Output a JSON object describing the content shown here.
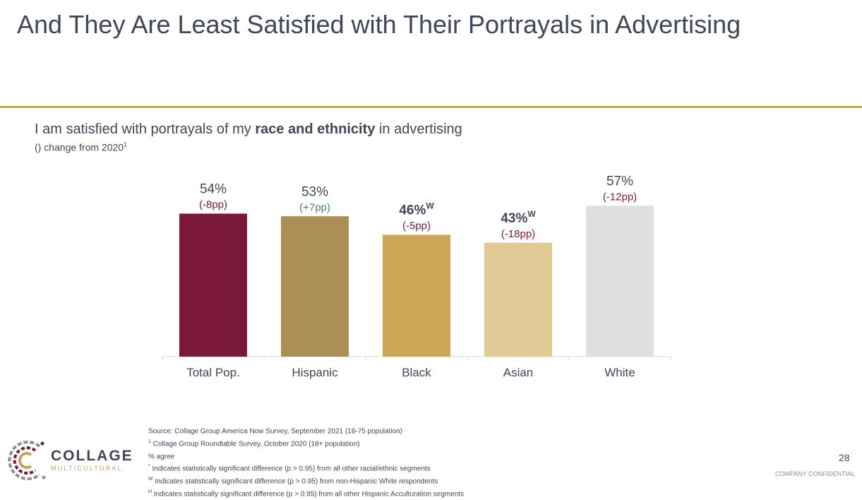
{
  "title": "And They Are Least Satisfied with Their Portrayals in Advertising",
  "subtitle": {
    "prefix": "I am satisfied with portrayals of my ",
    "bold": "race and ethnicity",
    "suffix": " in advertising"
  },
  "note": {
    "text": "() change from 2020",
    "marker": "1"
  },
  "chart_data": {
    "type": "bar",
    "title": "I am satisfied with portrayals of my race and ethnicity in advertising",
    "categories": [
      "Total Pop.",
      "Hispanic",
      "Black",
      "Asian",
      "White"
    ],
    "values": [
      54,
      53,
      46,
      43,
      57
    ],
    "value_labels": [
      "54%",
      "53%",
      "46%",
      "43%",
      "57%"
    ],
    "superscripts": [
      "",
      "",
      "W",
      "W",
      ""
    ],
    "bold_labels": [
      false,
      false,
      true,
      true,
      false
    ],
    "changes": [
      "(-8pp)",
      "(+7pp)",
      "(-5pp)",
      "(-18pp)",
      "(-12pp)"
    ],
    "bar_colors": [
      "#7a1838",
      "#ac8f55",
      "#cca654",
      "#e1c995",
      "#e0e0e0"
    ],
    "change_colors": [
      "#7a1838",
      "#3e8a6e",
      "#7a1838",
      "#7a1838",
      "#7a1838"
    ],
    "ylim": [
      0,
      60
    ],
    "xlabel": "",
    "ylabel": "% agree",
    "grid": false
  },
  "footnotes": [
    {
      "sup": "",
      "text": "Source: Collage Group America Now Survey, September 2021 (18-75 population)"
    },
    {
      "sup": "1",
      "text": " Collage Group Roundtable Survey, October 2020 (18+ population)"
    },
    {
      "sup": "",
      "text": "% agree"
    },
    {
      "sup": "*",
      "text": " Indicates statistically significant difference (p > 0.95) from all other racial/ethnic segments"
    },
    {
      "sup": "W",
      "text": " Indicates statistically significant difference (p > 0.95) from non-Hispanic White respondents"
    },
    {
      "sup": "H",
      "text": " Indicates statistically significant difference (p > 0.95) from all other Hispanic Acculturation segments"
    }
  ],
  "logo": {
    "word": "COLLAGE",
    "sub": "MULTICULTURAL"
  },
  "page_number": "28",
  "confidential": "COMPANY CONFIDENTIAL",
  "colors": {
    "accent": "#c6a55d",
    "text": "#3f4657",
    "axis": "#d9d9d9"
  }
}
